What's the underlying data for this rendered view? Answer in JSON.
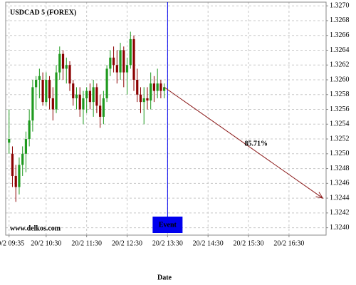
{
  "chart_data": {
    "type": "candlestick",
    "title": "USDCAD 5 (FOREX)",
    "watermark": "www.delkos.com",
    "x_label": "Date",
    "x": [
      "20/2 09:35",
      "20/2 09:40",
      "20/2 09:45",
      "20/2 09:50",
      "20/2 09:55",
      "20/2 10:00",
      "20/2 10:05",
      "20/2 10:10",
      "20/2 10:15",
      "20/2 10:20",
      "20/2 10:25",
      "20/2 10:30",
      "20/2 10:35",
      "20/2 10:40",
      "20/2 10:45",
      "20/2 10:50",
      "20/2 10:55",
      "20/2 11:00",
      "20/2 11:05",
      "20/2 11:10",
      "20/2 11:15",
      "20/2 11:20",
      "20/2 11:25",
      "20/2 11:30",
      "20/2 11:35",
      "20/2 11:40",
      "20/2 11:45",
      "20/2 11:50",
      "20/2 11:55",
      "20/2 12:00",
      "20/2 12:05",
      "20/2 12:10",
      "20/2 12:15",
      "20/2 12:20",
      "20/2 12:25",
      "20/2 12:30",
      "20/2 12:35",
      "20/2 12:40",
      "20/2 12:45",
      "20/2 12:50",
      "20/2 12:55",
      "20/2 13:00",
      "20/2 13:05",
      "20/2 13:10",
      "20/2 13:15",
      "20/2 13:20",
      "20/2 13:25"
    ],
    "open": [
      1.32515,
      1.325,
      1.3247,
      1.32455,
      1.32485,
      1.325,
      1.3252,
      1.32545,
      1.3259,
      1.326,
      1.326,
      1.3257,
      1.326,
      1.32575,
      1.3256,
      1.3261,
      1.32635,
      1.32615,
      1.3262,
      1.32595,
      1.32575,
      1.3258,
      1.3256,
      1.32575,
      1.32585,
      1.3257,
      1.3259,
      1.32565,
      1.3255,
      1.32575,
      1.32615,
      1.3263,
      1.3262,
      1.3261,
      1.3264,
      1.3261,
      1.3262,
      1.32655,
      1.326,
      1.3258,
      1.3257,
      1.32575,
      1.32572,
      1.32595,
      1.32585,
      1.32595,
      1.32585
    ],
    "high": [
      1.3256,
      1.3251,
      1.32485,
      1.32495,
      1.3251,
      1.3253,
      1.3256,
      1.326,
      1.32605,
      1.32615,
      1.3261,
      1.3261,
      1.32605,
      1.3259,
      1.3262,
      1.32645,
      1.3264,
      1.3263,
      1.32625,
      1.326,
      1.3259,
      1.3259,
      1.32585,
      1.3259,
      1.32595,
      1.326,
      1.32595,
      1.3258,
      1.32585,
      1.3262,
      1.3264,
      1.32645,
      1.3264,
      1.3265,
      1.32645,
      1.3263,
      1.32665,
      1.3266,
      1.32615,
      1.3259,
      1.3259,
      1.3259,
      1.3261,
      1.32605,
      1.32615,
      1.326,
      1.32595
    ],
    "low": [
      1.325,
      1.32455,
      1.32435,
      1.32445,
      1.3247,
      1.32475,
      1.3251,
      1.3253,
      1.3256,
      1.32575,
      1.32565,
      1.32565,
      1.3256,
      1.32545,
      1.32555,
      1.326,
      1.326,
      1.32595,
      1.32585,
      1.32565,
      1.3256,
      1.3255,
      1.3254,
      1.32555,
      1.3256,
      1.3255,
      1.32555,
      1.32535,
      1.3254,
      1.3257,
      1.32605,
      1.3261,
      1.32595,
      1.326,
      1.3259,
      1.3258,
      1.32615,
      1.32585,
      1.3257,
      1.32555,
      1.3254,
      1.3256,
      1.3256,
      1.3257,
      1.32575,
      1.32575,
      1.32575
    ],
    "close": [
      1.3252,
      1.3247,
      1.32455,
      1.32485,
      1.325,
      1.3252,
      1.32545,
      1.3259,
      1.326,
      1.32605,
      1.3257,
      1.326,
      1.32575,
      1.3256,
      1.3261,
      1.32635,
      1.32615,
      1.3262,
      1.32595,
      1.32575,
      1.3258,
      1.3256,
      1.32575,
      1.32585,
      1.3257,
      1.3259,
      1.32565,
      1.3255,
      1.32575,
      1.32615,
      1.3263,
      1.3262,
      1.3261,
      1.3264,
      1.3261,
      1.3262,
      1.32655,
      1.326,
      1.3258,
      1.3257,
      1.32575,
      1.32572,
      1.32595,
      1.32585,
      1.32595,
      1.32585,
      1.3259
    ],
    "up_color": "#1f9a1f",
    "down_color": "#8b0000",
    "xlim": [
      "20/2 09:30",
      "20/2 17:25"
    ],
    "xticks": [
      "20/2 09:35",
      "20/2 10:30",
      "20/2 11:30",
      "20/2 12:30",
      "20/2 13:30",
      "20/2 14:30",
      "20/2 15:30",
      "20/2 16:30"
    ],
    "ylim": [
      1.3239,
      1.32705
    ],
    "yticks": [
      {
        "value": 1.324,
        "label": "1.3240"
      },
      {
        "value": 1.3242,
        "label": "1.3242"
      },
      {
        "value": 1.3244,
        "label": "1.3244"
      },
      {
        "value": 1.3246,
        "label": "1.3246"
      },
      {
        "value": 1.3248,
        "label": "1.3248"
      },
      {
        "value": 1.325,
        "label": "1.3250"
      },
      {
        "value": 1.3252,
        "label": "1.3252"
      },
      {
        "value": 1.3254,
        "label": "1.3254"
      },
      {
        "value": 1.3256,
        "label": "1.3256"
      },
      {
        "value": 1.3258,
        "label": "1.3258"
      },
      {
        "value": 1.326,
        "label": "1.3260"
      },
      {
        "value": 1.3262,
        "label": "1.3262"
      },
      {
        "value": 1.3264,
        "label": "1.3264"
      },
      {
        "value": 1.3266,
        "label": "1.3266"
      },
      {
        "value": 1.3268,
        "label": "1.3268"
      },
      {
        "value": 1.327,
        "label": "1.3270"
      }
    ],
    "grid": true,
    "event": {
      "label": "Event",
      "x": "20/2 13:30",
      "color": "#0000ee"
    },
    "prediction": {
      "label": "85.71%",
      "color": "#8b1a1a",
      "start": {
        "x": "20/2 13:25",
        "y": 1.3259
      },
      "end": {
        "x": "20/2 17:20",
        "y": 1.3244
      }
    }
  }
}
